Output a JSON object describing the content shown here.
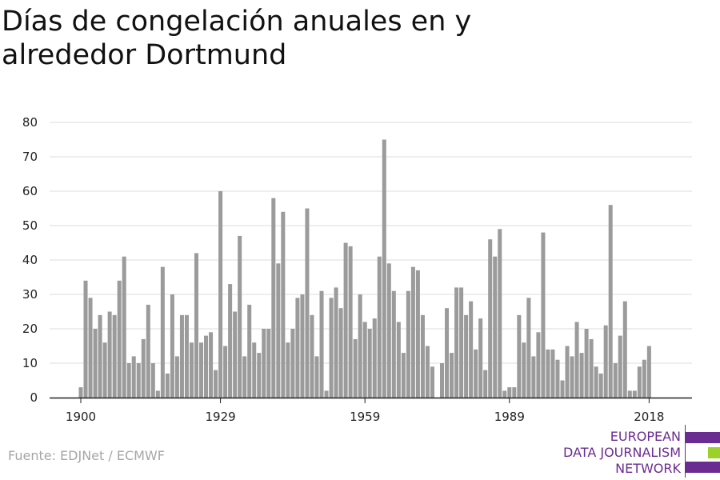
{
  "title": "Días de congelación anuales en y alrededor Dortmund",
  "source": "Fuente: EDJNet / ECMWF",
  "brand": {
    "lines": [
      "EUROPEAN",
      "DATA JOURNALISM",
      "NETWORK"
    ],
    "colors": {
      "primary": "#6b2c91",
      "accent": "#9ed02a"
    }
  },
  "chart_data": {
    "type": "bar",
    "title": "Días de congelación anuales en y alrededor Dortmund",
    "xlabel": "",
    "ylabel": "",
    "x_ticks": [
      1900,
      1929,
      1959,
      1989,
      2018
    ],
    "y_ticks": [
      0,
      10,
      20,
      30,
      40,
      50,
      60,
      70,
      80
    ],
    "ylim": [
      0,
      80
    ],
    "grid": true,
    "bar_color": "#9b9b9b",
    "categories": [
      1900,
      1901,
      1902,
      1903,
      1904,
      1905,
      1906,
      1907,
      1908,
      1909,
      1910,
      1911,
      1912,
      1913,
      1914,
      1915,
      1916,
      1917,
      1918,
      1919,
      1920,
      1921,
      1922,
      1923,
      1924,
      1925,
      1926,
      1927,
      1928,
      1929,
      1930,
      1931,
      1932,
      1933,
      1934,
      1935,
      1936,
      1937,
      1938,
      1939,
      1940,
      1941,
      1942,
      1943,
      1944,
      1945,
      1946,
      1947,
      1948,
      1949,
      1950,
      1951,
      1952,
      1953,
      1954,
      1955,
      1956,
      1957,
      1958,
      1959,
      1960,
      1961,
      1962,
      1963,
      1964,
      1965,
      1966,
      1967,
      1968,
      1969,
      1970,
      1971,
      1972,
      1973,
      1974,
      1975,
      1976,
      1977,
      1978,
      1979,
      1980,
      1981,
      1982,
      1983,
      1984,
      1985,
      1986,
      1987,
      1988,
      1989,
      1990,
      1991,
      1992,
      1993,
      1994,
      1995,
      1996,
      1997,
      1998,
      1999,
      2000,
      2001,
      2002,
      2003,
      2004,
      2005,
      2006,
      2007,
      2008,
      2009,
      2010,
      2011,
      2012,
      2013,
      2014,
      2015,
      2016,
      2017,
      2018
    ],
    "values": [
      3,
      34,
      29,
      20,
      24,
      16,
      25,
      24,
      34,
      41,
      10,
      12,
      10,
      17,
      27,
      10,
      2,
      38,
      7,
      30,
      12,
      24,
      24,
      16,
      42,
      16,
      18,
      19,
      8,
      60,
      15,
      33,
      25,
      47,
      12,
      27,
      16,
      13,
      20,
      20,
      58,
      39,
      54,
      16,
      20,
      29,
      30,
      55,
      24,
      12,
      31,
      2,
      29,
      32,
      26,
      45,
      44,
      17,
      30,
      22,
      20,
      23,
      41,
      75,
      39,
      31,
      22,
      13,
      31,
      38,
      37,
      24,
      15,
      9,
      0,
      10,
      26,
      13,
      32,
      32,
      24,
      28,
      14,
      23,
      8,
      46,
      41,
      49,
      2,
      3,
      3,
      24,
      16,
      29,
      12,
      19,
      48,
      14,
      14,
      11,
      5,
      15,
      12,
      22,
      13,
      20,
      17,
      9,
      7,
      21,
      56,
      10,
      18,
      28,
      2,
      2,
      9,
      11,
      15
    ]
  }
}
